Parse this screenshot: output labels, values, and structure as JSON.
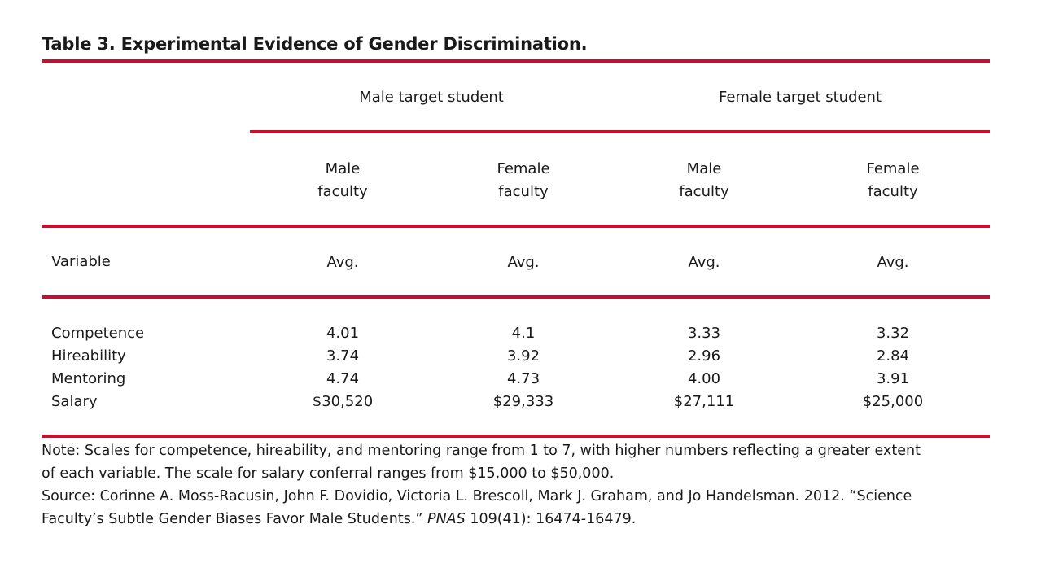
{
  "title": "Table 3. Experimental Evidence of Gender Discrimination.",
  "group_headers": [
    "Male target student",
    "Female target student"
  ],
  "sub_headers": [
    {
      "line1": "Male",
      "line2": "faculty"
    },
    {
      "line1": "Female",
      "line2": "faculty"
    },
    {
      "line1": "Male",
      "line2": "faculty"
    },
    {
      "line1": "Female",
      "line2": "faculty"
    }
  ],
  "variable_label": "Variable",
  "avg_labels": [
    "Avg.",
    "Avg.",
    "Avg.",
    "Avg."
  ],
  "rows": [
    {
      "label": "Competence",
      "values": [
        "4.01",
        "4.1",
        "3.33",
        "3.32"
      ]
    },
    {
      "label": "Hireability",
      "values": [
        "3.74",
        "3.92",
        "2.96",
        "2.84"
      ]
    },
    {
      "label": "Mentoring",
      "values": [
        "4.74",
        "4.73",
        "4.00",
        "3.91"
      ]
    },
    {
      "label": "Salary",
      "values": [
        "$30,520",
        "$29,333",
        "$27,111",
        "$25,000"
      ]
    }
  ],
  "note": {
    "line1": "Note: Scales for competence, hireability, and mentoring range from 1 to 7, with higher numbers reflecting a greater extent",
    "line2": "of each variable. The scale for salary conferral ranges from $15,000 to $50,000.",
    "source_line1": "Source: Corinne A. Moss-Racusin, John F. Dovidio, Victoria L. Brescoll, Mark J. Graham, and Jo Handelsman. 2012. “Science",
    "source_line2_pre": "Faculty’s Subtle Gender Biases Favor Male Students.” ",
    "source_journal": "PNAS",
    "source_line2_post": " 109(41): 16474-16479."
  },
  "colors": {
    "rule": "#c8102e",
    "text": "#1a1a1a"
  }
}
